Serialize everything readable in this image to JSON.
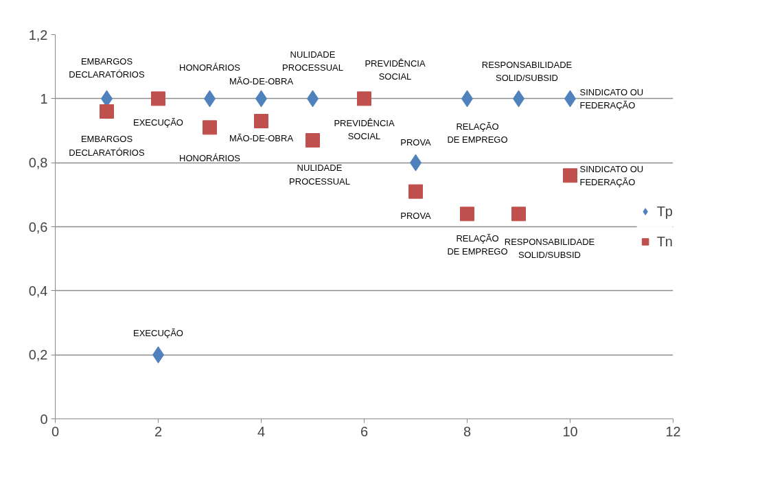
{
  "chart_data": {
    "type": "scatter",
    "xlim": [
      0,
      12
    ],
    "ylim": [
      0,
      1.2
    ],
    "xticks": [
      0,
      2,
      4,
      6,
      8,
      10,
      12
    ],
    "yticks": [
      0,
      {
        "value": 0.2,
        "label": "0,2"
      },
      {
        "value": 0.4,
        "label": "0,4"
      },
      {
        "value": 0.6,
        "label": "0,6"
      },
      {
        "value": 0.8,
        "label": "0,8"
      },
      1,
      {
        "value": 1.2,
        "label": "1,2"
      }
    ],
    "grid": "y",
    "legend": "right",
    "series": [
      {
        "name": "Tp",
        "color": "#4f81bd",
        "marker": "diamond",
        "x": [
          1,
          2,
          3,
          4,
          5,
          6,
          7,
          8,
          9,
          10
        ],
        "values": [
          1,
          0.2,
          1,
          1,
          1,
          null,
          0.8,
          1,
          1,
          1
        ]
      },
      {
        "name": "Tn",
        "color": "#c0504d",
        "marker": "square",
        "x": [
          1,
          2,
          3,
          4,
          5,
          6,
          7,
          8,
          9,
          10
        ],
        "values": [
          0.96,
          1,
          0.91,
          0.93,
          0.87,
          1,
          0.71,
          0.64,
          0.64,
          0.76
        ]
      }
    ],
    "annotations": [
      {
        "text": "EMBARGOS\nDECLARATÓRIOS",
        "x": 1,
        "y": 1
      },
      {
        "text": "EXECUÇÃO",
        "x": 2,
        "y": 0.2
      },
      {
        "text": "HONORÁRIOS",
        "x": 3,
        "y": 1
      },
      {
        "text": "MÃO-DE-OBRA",
        "x": 4,
        "y": 1
      },
      {
        "text": "NULIDADE\nPROCESSUAL",
        "x": 5,
        "y": 1
      },
      {
        "text": "PREVIDÊNCIA\nSOCIAL",
        "x": 6,
        "y": 1
      },
      {
        "text": "PROVA",
        "x": 7,
        "y": 0.8
      },
      {
        "text": "RELAÇÃO\nDE EMPREGO",
        "x": 8,
        "y": 1
      },
      {
        "text": "RESPONSABILIDADE\nSOLID/SUBSID",
        "x": 9,
        "y": 1
      },
      {
        "text": "SINDICATO OU FEDERAÇÃO",
        "x": 10,
        "y": 1
      },
      {
        "text": "EMBARGOS\nDECLARATÓRIOS",
        "x": 1,
        "y": 0.96
      },
      {
        "text": "EXECUÇÃO",
        "x": 2,
        "y": 1
      },
      {
        "text": "HONORÁRIOS",
        "x": 3,
        "y": 0.91
      },
      {
        "text": "MÃO-DE-OBRA",
        "x": 4,
        "y": 0.93
      },
      {
        "text": "NULIDADE\nPROCESSUAL",
        "x": 5,
        "y": 0.87
      },
      {
        "text": "PREVIDÊNCIA\nSOCIAL",
        "x": 6,
        "y": 1
      },
      {
        "text": "PROVA",
        "x": 7,
        "y": 0.71
      },
      {
        "text": "RELAÇÃO\nDE EMPREGO",
        "x": 8,
        "y": 0.64
      },
      {
        "text": "RESPONSABILIDADE\nSOLID/SUBSID",
        "x": 9,
        "y": 0.64
      },
      {
        "text": "SINDICATO OU FEDERAÇÃO",
        "x": 10,
        "y": 0.76
      }
    ]
  }
}
